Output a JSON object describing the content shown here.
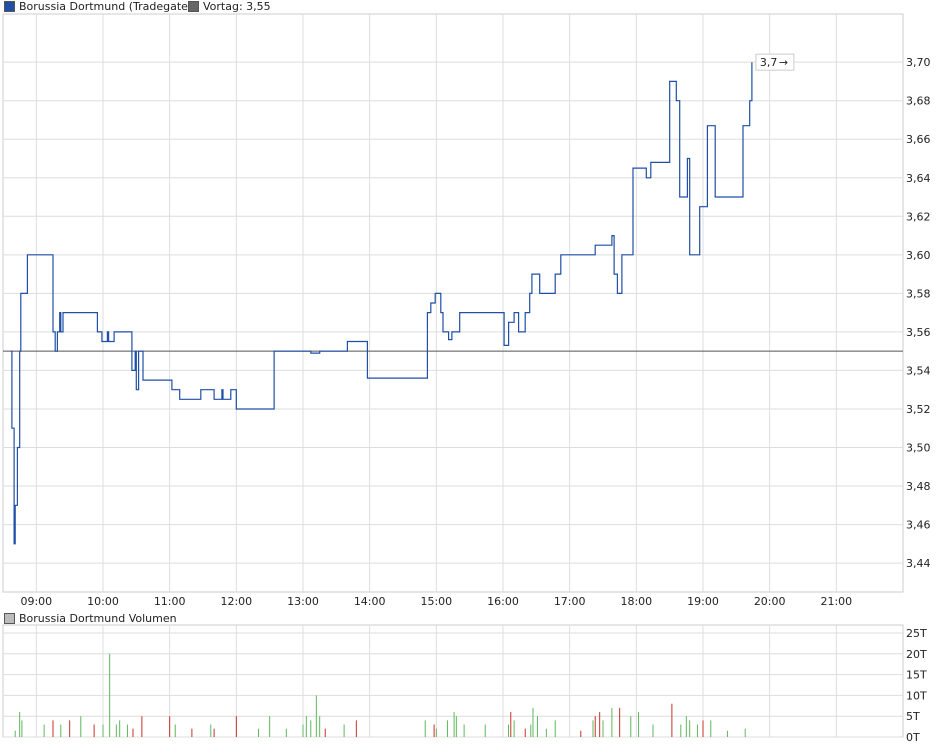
{
  "price_legend": {
    "series_label": "Borussia Dortmund (Tradegate)",
    "series_color": "#1f4fa6",
    "vortag_label": "Vortag: 3,55",
    "vortag_color": "#666666"
  },
  "volume_legend": {
    "label": "Borussia Dortmund Volumen",
    "color": "#bbbbbb"
  },
  "last_price_label": "3,7",
  "chart_data": [
    {
      "type": "line",
      "title": "Borussia Dortmund (Tradegate)",
      "xlabel": "",
      "ylabel": "",
      "step": true,
      "reference_line": {
        "name": "Vortag",
        "value": 3.55
      },
      "ylim": [
        3.425,
        3.725
      ],
      "xlim": [
        "08:30",
        "22:00"
      ],
      "y_ticks": [
        "3,44",
        "3,46",
        "3,48",
        "3,50",
        "3,52",
        "3,54",
        "3,56",
        "3,58",
        "3,60",
        "3,62",
        "3,64",
        "3,66",
        "3,68",
        "3,70"
      ],
      "x_ticks": [
        "09:00",
        "10:00",
        "11:00",
        "12:00",
        "13:00",
        "14:00",
        "15:00",
        "16:00",
        "17:00",
        "18:00",
        "19:00",
        "20:00",
        "21:00"
      ],
      "grid": true,
      "series": [
        {
          "name": "Borussia Dortmund (Tradegate)",
          "x": [
            "08:37",
            "08:38",
            "08:40",
            "08:41",
            "08:43",
            "08:45",
            "08:46",
            "08:52",
            "08:53",
            "09:03",
            "09:07",
            "09:15",
            "09:17",
            "09:19",
            "09:21",
            "09:22",
            "09:24",
            "09:26",
            "09:52",
            "09:55",
            "09:57",
            "09:59",
            "10:04",
            "10:05",
            "10:10",
            "10:13",
            "10:26",
            "10:29",
            "10:30",
            "10:32",
            "10:36",
            "11:00",
            "11:02",
            "11:09",
            "11:25",
            "11:28",
            "11:38",
            "11:40",
            "11:45",
            "11:47",
            "11:48",
            "11:55",
            "12:00",
            "12:02",
            "12:12",
            "12:30",
            "12:34",
            "13:03",
            "13:05",
            "13:07",
            "13:12",
            "13:15",
            "13:20",
            "13:37",
            "13:40",
            "13:45",
            "13:56",
            "13:58",
            "14:49",
            "14:52",
            "14:55",
            "14:59",
            "15:04",
            "15:06",
            "15:09",
            "15:11",
            "15:14",
            "15:16",
            "15:19",
            "15:21",
            "15:42",
            "15:44",
            "15:57",
            "16:01",
            "16:05",
            "16:10",
            "16:14",
            "16:18",
            "16:20",
            "16:24",
            "16:26",
            "16:28",
            "16:33",
            "16:37",
            "16:47",
            "16:52",
            "16:55",
            "16:57",
            "16:59",
            "17:01",
            "17:05",
            "17:07",
            "17:15",
            "17:20",
            "17:23",
            "17:38",
            "17:40",
            "17:43",
            "17:47",
            "17:50",
            "17:54",
            "17:57",
            "18:06",
            "18:09",
            "18:13",
            "18:15",
            "18:24",
            "18:30",
            "18:34",
            "18:36",
            "18:39",
            "18:40",
            "18:46",
            "18:48",
            "18:50",
            "18:56",
            "18:57",
            "19:04",
            "19:10",
            "19:11",
            "19:23",
            "19:24",
            "19:32",
            "19:36",
            "19:38",
            "19:40",
            "19:42",
            "19:44"
          ],
          "values": [
            3.55,
            3.51,
            3.45,
            3.47,
            3.5,
            3.55,
            3.58,
            3.6,
            3.6,
            3.6,
            3.6,
            3.56,
            3.55,
            3.56,
            3.57,
            3.56,
            3.57,
            3.57,
            3.57,
            3.56,
            3.56,
            3.555,
            3.56,
            3.555,
            3.56,
            3.56,
            3.54,
            3.55,
            3.53,
            3.55,
            3.535,
            3.535,
            3.53,
            3.525,
            3.525,
            3.53,
            3.53,
            3.525,
            3.525,
            3.53,
            3.525,
            3.53,
            3.52,
            3.52,
            3.52,
            3.52,
            3.55,
            3.55,
            3.55,
            3.549,
            3.549,
            3.55,
            3.55,
            3.55,
            3.555,
            3.555,
            3.555,
            3.536,
            3.536,
            3.57,
            3.575,
            3.58,
            3.57,
            3.56,
            3.56,
            3.556,
            3.56,
            3.56,
            3.56,
            3.57,
            3.57,
            3.57,
            3.57,
            3.553,
            3.565,
            3.57,
            3.56,
            3.56,
            3.57,
            3.58,
            3.59,
            3.59,
            3.58,
            3.58,
            3.59,
            3.6,
            3.6,
            3.6,
            3.6,
            3.6,
            3.6,
            3.6,
            3.6,
            3.6,
            3.605,
            3.61,
            3.59,
            3.58,
            3.6,
            3.6,
            3.6,
            3.645,
            3.645,
            3.64,
            3.648,
            3.648,
            3.648,
            3.69,
            3.69,
            3.68,
            3.63,
            3.63,
            3.65,
            3.6,
            3.6,
            3.6,
            3.625,
            3.667,
            3.667,
            3.63,
            3.63,
            3.63,
            3.63,
            3.667,
            3.667,
            3.667,
            3.68,
            3.7
          ]
        }
      ]
    },
    {
      "type": "bar",
      "title": "Borussia Dortmund Volumen",
      "xlabel": "",
      "ylabel": "",
      "ylim": [
        0,
        25
      ],
      "y_unit": "T",
      "y_ticks": [
        "0T",
        "5T",
        "10T",
        "15T",
        "20T",
        "25T"
      ],
      "x_ticks": [
        "09:00",
        "10:00",
        "11:00",
        "12:00",
        "13:00",
        "14:00",
        "15:00",
        "16:00",
        "17:00",
        "18:00",
        "19:00",
        "20:00",
        "21:00"
      ],
      "up_color": "#5cb85c",
      "down_color": "#c9302c",
      "bars": [
        {
          "x": "08:41",
          "v": 1.5,
          "d": "up"
        },
        {
          "x": "08:45",
          "v": 6,
          "d": "up"
        },
        {
          "x": "08:47",
          "v": 4,
          "d": "up"
        },
        {
          "x": "09:07",
          "v": 3,
          "d": "up"
        },
        {
          "x": "09:15",
          "v": 4,
          "d": "down"
        },
        {
          "x": "09:22",
          "v": 3,
          "d": "up"
        },
        {
          "x": "09:30",
          "v": 4,
          "d": "down"
        },
        {
          "x": "09:40",
          "v": 5,
          "d": "up"
        },
        {
          "x": "09:52",
          "v": 3,
          "d": "down"
        },
        {
          "x": "10:00",
          "v": 3,
          "d": "up"
        },
        {
          "x": "10:06",
          "v": 20,
          "d": "up"
        },
        {
          "x": "10:12",
          "v": 3,
          "d": "up"
        },
        {
          "x": "10:15",
          "v": 4,
          "d": "up"
        },
        {
          "x": "10:22",
          "v": 3,
          "d": "up"
        },
        {
          "x": "10:27",
          "v": 2,
          "d": "down"
        },
        {
          "x": "10:35",
          "v": 5,
          "d": "down"
        },
        {
          "x": "11:00",
          "v": 5,
          "d": "down"
        },
        {
          "x": "11:05",
          "v": 3,
          "d": "up"
        },
        {
          "x": "11:20",
          "v": 2,
          "d": "down"
        },
        {
          "x": "11:37",
          "v": 3,
          "d": "up"
        },
        {
          "x": "11:40",
          "v": 2,
          "d": "down"
        },
        {
          "x": "12:00",
          "v": 5,
          "d": "down"
        },
        {
          "x": "12:20",
          "v": 2,
          "d": "up"
        },
        {
          "x": "12:30",
          "v": 5,
          "d": "up"
        },
        {
          "x": "12:45",
          "v": 2,
          "d": "up"
        },
        {
          "x": "13:00",
          "v": 3,
          "d": "up"
        },
        {
          "x": "13:03",
          "v": 5,
          "d": "up"
        },
        {
          "x": "13:07",
          "v": 4,
          "d": "up"
        },
        {
          "x": "13:12",
          "v": 10,
          "d": "up"
        },
        {
          "x": "13:15",
          "v": 5,
          "d": "up"
        },
        {
          "x": "13:20",
          "v": 2,
          "d": "down"
        },
        {
          "x": "13:37",
          "v": 3,
          "d": "up"
        },
        {
          "x": "13:48",
          "v": 4,
          "d": "down"
        },
        {
          "x": "14:50",
          "v": 4,
          "d": "up"
        },
        {
          "x": "14:58",
          "v": 3,
          "d": "down"
        },
        {
          "x": "15:00",
          "v": 2,
          "d": "up"
        },
        {
          "x": "15:10",
          "v": 4,
          "d": "up"
        },
        {
          "x": "15:16",
          "v": 6,
          "d": "up"
        },
        {
          "x": "15:18",
          "v": 5,
          "d": "up"
        },
        {
          "x": "15:25",
          "v": 3,
          "d": "up"
        },
        {
          "x": "15:44",
          "v": 3,
          "d": "up"
        },
        {
          "x": "16:05",
          "v": 3,
          "d": "up"
        },
        {
          "x": "16:07",
          "v": 6,
          "d": "down"
        },
        {
          "x": "16:10",
          "v": 4,
          "d": "up"
        },
        {
          "x": "16:20",
          "v": 2,
          "d": "down"
        },
        {
          "x": "16:25",
          "v": 3,
          "d": "up"
        },
        {
          "x": "16:27",
          "v": 7,
          "d": "up"
        },
        {
          "x": "16:31",
          "v": 5,
          "d": "up"
        },
        {
          "x": "16:39",
          "v": 2,
          "d": "up"
        },
        {
          "x": "16:47",
          "v": 4,
          "d": "up"
        },
        {
          "x": "17:10",
          "v": 1.5,
          "d": "down"
        },
        {
          "x": "17:21",
          "v": 4,
          "d": "up"
        },
        {
          "x": "17:23",
          "v": 5,
          "d": "down"
        },
        {
          "x": "17:27",
          "v": 6,
          "d": "down"
        },
        {
          "x": "17:30",
          "v": 4,
          "d": "up"
        },
        {
          "x": "17:38",
          "v": 7,
          "d": "up"
        },
        {
          "x": "17:45",
          "v": 7,
          "d": "down"
        },
        {
          "x": "17:55",
          "v": 5,
          "d": "up"
        },
        {
          "x": "18:02",
          "v": 6,
          "d": "up"
        },
        {
          "x": "18:15",
          "v": 3,
          "d": "up"
        },
        {
          "x": "18:32",
          "v": 8,
          "d": "down"
        },
        {
          "x": "18:40",
          "v": 3,
          "d": "up"
        },
        {
          "x": "18:45",
          "v": 5,
          "d": "up"
        },
        {
          "x": "18:48",
          "v": 4,
          "d": "up"
        },
        {
          "x": "18:55",
          "v": 3,
          "d": "up"
        },
        {
          "x": "19:00",
          "v": 4,
          "d": "down"
        },
        {
          "x": "19:07",
          "v": 4,
          "d": "up"
        },
        {
          "x": "19:22",
          "v": 1.5,
          "d": "up"
        },
        {
          "x": "19:38",
          "v": 2,
          "d": "up"
        }
      ]
    }
  ]
}
